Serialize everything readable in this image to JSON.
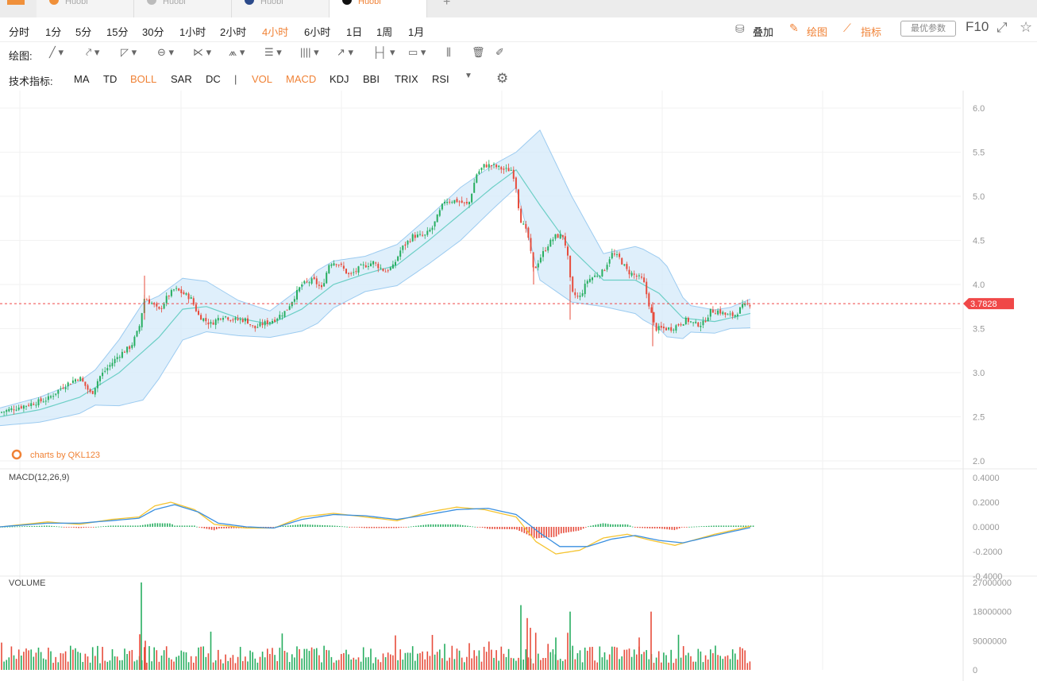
{
  "tabs": [
    {
      "source": "Huobi",
      "dot": "#f0903a"
    },
    {
      "source": "Huobi",
      "dot": "#bbb"
    },
    {
      "source": "Huobi",
      "dot": "#2b4a8a"
    },
    {
      "source": "Huobi",
      "dot": "#111",
      "active": true
    }
  ],
  "add_tab": "+",
  "timeframes": [
    "分时",
    "1分",
    "5分",
    "15分",
    "30分",
    "1小时",
    "2小时",
    "4小时",
    "6小时",
    "1日",
    "1周",
    "1月"
  ],
  "active_timeframe": "4小时",
  "right_tools": {
    "overlay": "叠加",
    "draw": "绘图",
    "indicator": "指标",
    "param": "最优参数",
    "f10": "F10",
    "expand_icon": "⤢",
    "star_icon": "☆"
  },
  "drawing": {
    "label": "绘图:"
  },
  "indicators": {
    "label": "技术指标:",
    "items": [
      "MA",
      "TD",
      "BOLL",
      "SAR",
      "DC",
      "|",
      "VOL",
      "MACD",
      "KDJ",
      "BBI",
      "TRIX",
      "RSI"
    ],
    "active": [
      "BOLL",
      "VOL",
      "MACD"
    ]
  },
  "colors": {
    "up": "#27ae60",
    "down": "#e74c3c",
    "accent": "#f08236",
    "boll_fill": "#d4e9fa",
    "boll_line": "#9ccbf0",
    "mid": "#6ccfc6",
    "dif": "#3a8fe0",
    "dea": "#f5c431",
    "price_tag": "#f04848"
  },
  "chart_data": {
    "type": "candlestick",
    "watermark": "charts by QKL123",
    "current_price": "3.7828",
    "main": {
      "yticks": [
        "6.0",
        "5.5",
        "5.0",
        "4.5",
        "4.0",
        "3.5",
        "3.0",
        "2.5",
        "2.0"
      ],
      "ylim": [
        2.0,
        6.0
      ],
      "close_path": [
        [
          0,
          2.55
        ],
        [
          20,
          2.6
        ],
        [
          40,
          2.65
        ],
        [
          60,
          2.7
        ],
        [
          80,
          2.85
        ],
        [
          100,
          2.95
        ],
        [
          115,
          2.75
        ],
        [
          125,
          2.95
        ],
        [
          135,
          3.05
        ],
        [
          150,
          3.2
        ],
        [
          165,
          3.3
        ],
        [
          175,
          3.5
        ],
        [
          182,
          3.85
        ],
        [
          190,
          3.8
        ],
        [
          200,
          3.7
        ],
        [
          210,
          3.85
        ],
        [
          220,
          3.95
        ],
        [
          230,
          3.9
        ],
        [
          240,
          3.85
        ],
        [
          250,
          3.65
        ],
        [
          265,
          3.55
        ],
        [
          280,
          3.65
        ],
        [
          295,
          3.6
        ],
        [
          310,
          3.6
        ],
        [
          320,
          3.5
        ],
        [
          330,
          3.55
        ],
        [
          345,
          3.6
        ],
        [
          360,
          3.7
        ],
        [
          370,
          3.85
        ],
        [
          380,
          4.0
        ],
        [
          395,
          4.05
        ],
        [
          405,
          3.95
        ],
        [
          415,
          4.25
        ],
        [
          425,
          4.25
        ],
        [
          440,
          4.1
        ],
        [
          455,
          4.2
        ],
        [
          470,
          4.25
        ],
        [
          485,
          4.15
        ],
        [
          495,
          4.2
        ],
        [
          505,
          4.4
        ],
        [
          520,
          4.55
        ],
        [
          535,
          4.55
        ],
        [
          545,
          4.65
        ],
        [
          560,
          4.95
        ],
        [
          575,
          4.95
        ],
        [
          590,
          4.9
        ],
        [
          600,
          5.25
        ],
        [
          610,
          5.35
        ],
        [
          620,
          5.35
        ],
        [
          635,
          5.3
        ],
        [
          645,
          5.3
        ],
        [
          650,
          5.1
        ],
        [
          655,
          4.75
        ],
        [
          665,
          4.55
        ],
        [
          672,
          4.15
        ],
        [
          680,
          4.3
        ],
        [
          690,
          4.45
        ],
        [
          700,
          4.55
        ],
        [
          710,
          4.55
        ],
        [
          715,
          4.3
        ],
        [
          720,
          3.9
        ],
        [
          730,
          3.85
        ],
        [
          740,
          4.05
        ],
        [
          750,
          4.1
        ],
        [
          760,
          4.15
        ],
        [
          770,
          4.35
        ],
        [
          780,
          4.3
        ],
        [
          790,
          4.15
        ],
        [
          800,
          4.1
        ],
        [
          810,
          4.05
        ],
        [
          818,
          3.75
        ],
        [
          825,
          3.5
        ],
        [
          835,
          3.5
        ],
        [
          845,
          3.5
        ],
        [
          855,
          3.55
        ],
        [
          865,
          3.6
        ],
        [
          875,
          3.55
        ],
        [
          885,
          3.55
        ],
        [
          895,
          3.7
        ],
        [
          905,
          3.7
        ],
        [
          915,
          3.65
        ],
        [
          925,
          3.65
        ],
        [
          935,
          3.75
        ],
        [
          945,
          3.78
        ]
      ],
      "mid_path": [
        [
          0,
          2.5
        ],
        [
          50,
          2.58
        ],
        [
          100,
          2.72
        ],
        [
          150,
          3.0
        ],
        [
          200,
          3.4
        ],
        [
          230,
          3.72
        ],
        [
          260,
          3.75
        ],
        [
          300,
          3.62
        ],
        [
          340,
          3.55
        ],
        [
          380,
          3.72
        ],
        [
          420,
          4.0
        ],
        [
          460,
          4.12
        ],
        [
          500,
          4.22
        ],
        [
          540,
          4.5
        ],
        [
          580,
          4.8
        ],
        [
          620,
          5.1
        ],
        [
          650,
          5.3
        ],
        [
          680,
          4.9
        ],
        [
          720,
          4.4
        ],
        [
          760,
          4.05
        ],
        [
          800,
          4.05
        ],
        [
          830,
          3.9
        ],
        [
          860,
          3.62
        ],
        [
          900,
          3.58
        ],
        [
          949,
          3.68
        ]
      ],
      "width_path": [
        [
          0,
          0.1
        ],
        [
          120,
          0.2
        ],
        [
          180,
          0.55
        ],
        [
          230,
          0.35
        ],
        [
          300,
          0.2
        ],
        [
          340,
          0.15
        ],
        [
          400,
          0.3
        ],
        [
          460,
          0.2
        ],
        [
          520,
          0.25
        ],
        [
          580,
          0.3
        ],
        [
          620,
          0.25
        ],
        [
          650,
          0.2
        ],
        [
          680,
          0.85
        ],
        [
          720,
          0.6
        ],
        [
          760,
          0.3
        ],
        [
          810,
          0.4
        ],
        [
          840,
          0.4
        ],
        [
          870,
          0.15
        ],
        [
          920,
          0.12
        ],
        [
          949,
          0.17
        ]
      ]
    },
    "macd": {
      "label": "MACD(12,26,9)",
      "yticks": [
        "0.4000",
        "0.2000",
        "0.0000",
        "-0.2000",
        "-0.4000"
      ],
      "ylim": [
        -0.4,
        0.4
      ],
      "dif_path": [
        [
          0,
          0.0
        ],
        [
          60,
          0.04
        ],
        [
          100,
          0.02
        ],
        [
          140,
          0.06
        ],
        [
          175,
          0.08
        ],
        [
          195,
          0.17
        ],
        [
          215,
          0.2
        ],
        [
          245,
          0.14
        ],
        [
          270,
          0.02
        ],
        [
          310,
          -0.01
        ],
        [
          345,
          -0.01
        ],
        [
          380,
          0.08
        ],
        [
          420,
          0.11
        ],
        [
          460,
          0.08
        ],
        [
          500,
          0.05
        ],
        [
          540,
          0.12
        ],
        [
          575,
          0.16
        ],
        [
          610,
          0.14
        ],
        [
          650,
          0.08
        ],
        [
          675,
          -0.12
        ],
        [
          700,
          -0.22
        ],
        [
          730,
          -0.19
        ],
        [
          760,
          -0.09
        ],
        [
          790,
          -0.06
        ],
        [
          820,
          -0.11
        ],
        [
          850,
          -0.15
        ],
        [
          900,
          -0.06
        ],
        [
          949,
          0.01
        ]
      ],
      "dea_path": [
        [
          0,
          0.0
        ],
        [
          60,
          0.03
        ],
        [
          100,
          0.03
        ],
        [
          140,
          0.05
        ],
        [
          175,
          0.07
        ],
        [
          195,
          0.14
        ],
        [
          220,
          0.18
        ],
        [
          250,
          0.12
        ],
        [
          275,
          0.03
        ],
        [
          310,
          0.0
        ],
        [
          345,
          -0.01
        ],
        [
          380,
          0.06
        ],
        [
          420,
          0.1
        ],
        [
          460,
          0.09
        ],
        [
          500,
          0.06
        ],
        [
          540,
          0.1
        ],
        [
          575,
          0.14
        ],
        [
          615,
          0.15
        ],
        [
          650,
          0.1
        ],
        [
          680,
          -0.05
        ],
        [
          705,
          -0.16
        ],
        [
          740,
          -0.16
        ],
        [
          770,
          -0.1
        ],
        [
          800,
          -0.07
        ],
        [
          830,
          -0.11
        ],
        [
          860,
          -0.13
        ],
        [
          900,
          -0.07
        ],
        [
          949,
          0.0
        ]
      ]
    },
    "volume": {
      "label": "VOLUME",
      "yticks": [
        "27000000",
        "18000000",
        "9000000",
        "0"
      ],
      "ylim": [
        0,
        27000000
      ],
      "spikes": [
        [
          178,
          27000000
        ],
        [
          176,
          11000000
        ],
        [
          183,
          9000000
        ],
        [
          656,
          20000000
        ],
        [
          664,
          16000000
        ],
        [
          668,
          13000000
        ],
        [
          718,
          18000000
        ],
        [
          820,
          18000000
        ],
        [
          805,
          10000000
        ],
        [
          700,
          10000000
        ]
      ]
    }
  }
}
